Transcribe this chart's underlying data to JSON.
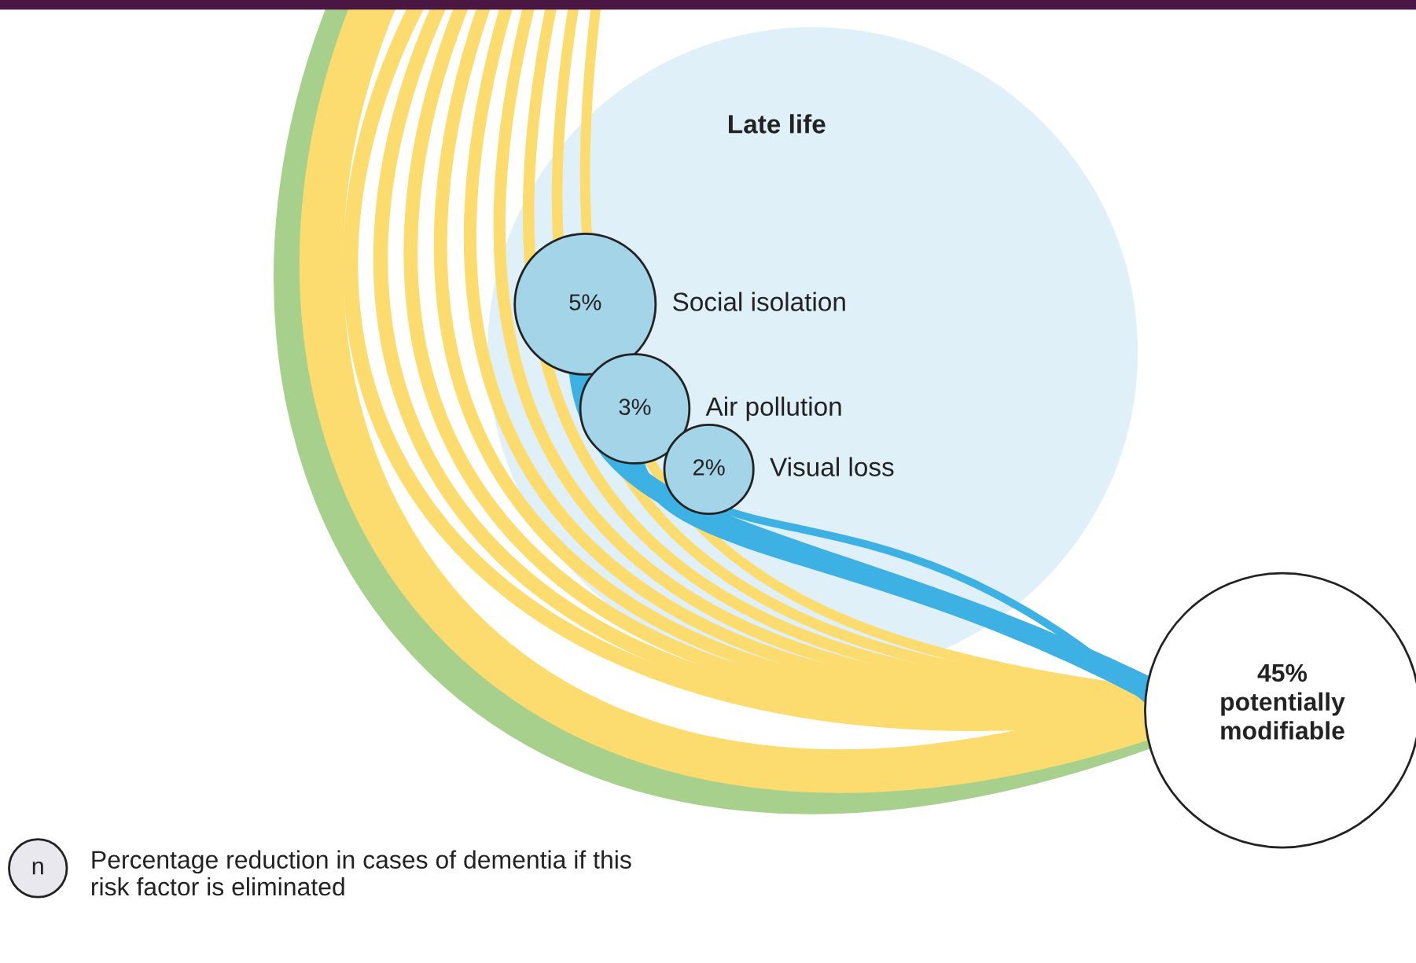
{
  "chart_data": {
    "type": "other",
    "title": "Late life",
    "categories": [
      "Social isolation",
      "Air pollution",
      "Visual loss"
    ],
    "values": [
      5,
      3,
      2
    ],
    "value_labels": [
      "5%",
      "3%",
      "2%"
    ],
    "colors": [
      "#a3d4e8",
      "#a3d4e8",
      "#a3d4e8"
    ],
    "annotations": [
      "45% potentially modifiable",
      "n",
      "Percentage reduction in cases of dementia if this risk factor is eliminated"
    ]
  }
}
